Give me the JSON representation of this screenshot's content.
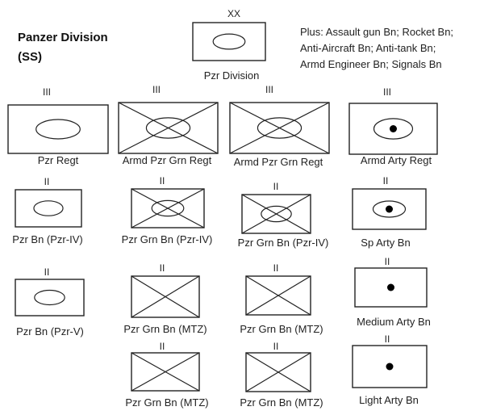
{
  "title_line1": "Panzer Division",
  "title_line2": "(SS)",
  "notes": [
    "Plus: Assault gun Bn; Rocket Bn;",
    "Anti-Aircraft Bn; Anti-tank Bn;",
    "Armd Engineer Bn; Signals Bn"
  ],
  "units": {
    "division": {
      "echelon": "XX",
      "label": "Pzr Division",
      "symbol": "armour"
    },
    "pzr_regt": {
      "echelon": "III",
      "label": "Pzr Regt",
      "symbol": "armour"
    },
    "armd_pzr_grn_regt_1": {
      "echelon": "III",
      "label": "Armd Pzr Grn Regt",
      "symbol": "armoured-infantry"
    },
    "armd_pzr_grn_regt_2": {
      "echelon": "III",
      "label": "Armd Pzr Grn Regt",
      "symbol": "armoured-infantry"
    },
    "armd_arty_regt": {
      "echelon": "III",
      "label": "Armd Arty Regt",
      "symbol": "armoured-artillery"
    },
    "pzr_bn_iv": {
      "echelon": "II",
      "label": "Pzr Bn (Pzr-IV)",
      "symbol": "armour"
    },
    "pzr_grn_bn_iv_1": {
      "echelon": "II",
      "label": "Pzr Grn Bn (Pzr-IV)",
      "symbol": "armoured-infantry"
    },
    "pzr_grn_bn_iv_2": {
      "echelon": "II",
      "label": "Pzr Grn Bn (Pzr-IV)",
      "symbol": "armoured-infantry"
    },
    "sp_arty_bn": {
      "echelon": "II",
      "label": "Sp Arty Bn",
      "symbol": "armoured-artillery"
    },
    "pzr_bn_v": {
      "echelon": "II",
      "label": "Pzr Bn (Pzr-V)",
      "symbol": "armour"
    },
    "pzr_grn_bn_mtz_1": {
      "echelon": "II",
      "label": "Pzr Grn Bn (MTZ)",
      "symbol": "infantry"
    },
    "pzr_grn_bn_mtz_2": {
      "echelon": "II",
      "label": "Pzr Grn Bn (MTZ)",
      "symbol": "infantry"
    },
    "medium_arty_bn": {
      "echelon": "II",
      "label": "Medium Arty Bn",
      "symbol": "artillery"
    },
    "pzr_grn_bn_mtz_3": {
      "echelon": "II",
      "label": "Pzr Grn Bn (MTZ)",
      "symbol": "infantry"
    },
    "pzr_grn_bn_mtz_4": {
      "echelon": "II",
      "label": "Pzr Grn Bn (MTZ)",
      "symbol": "infantry"
    },
    "light_arty_bn": {
      "echelon": "II",
      "label": "Light Arty Bn",
      "symbol": "artillery"
    }
  }
}
